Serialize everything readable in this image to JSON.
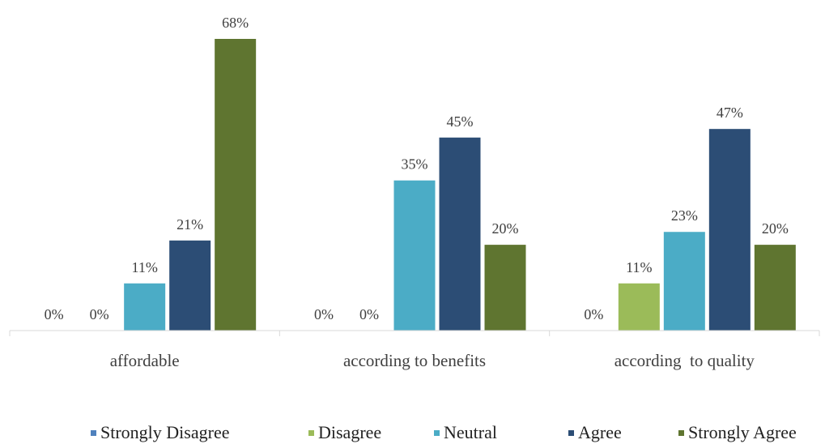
{
  "chart_data": {
    "type": "bar",
    "categories": [
      "affordable",
      "according to benefits",
      "according  to quality"
    ],
    "series": [
      {
        "name": "Strongly Disagree",
        "color": "#4f81bd",
        "values": [
          0,
          0,
          0
        ],
        "labels": [
          "0%",
          "0%",
          "0%"
        ]
      },
      {
        "name": "Disagree",
        "color": "#9bbb59",
        "values": [
          0,
          0,
          11
        ],
        "labels": [
          "0%",
          "0%",
          "11%"
        ]
      },
      {
        "name": "Neutral",
        "color": "#4bacc6",
        "values": [
          11,
          35,
          23
        ],
        "labels": [
          "11%",
          "35%",
          "23%"
        ]
      },
      {
        "name": "Agree",
        "color": "#2c4d75",
        "values": [
          21,
          45,
          47
        ],
        "labels": [
          "21%",
          "45%",
          "47%"
        ]
      },
      {
        "name": "Strongly Agree",
        "color": "#5f7530",
        "values": [
          68,
          20,
          20
        ],
        "labels": [
          "68%",
          "20%",
          "20%"
        ]
      }
    ],
    "ylim": [
      0,
      68
    ],
    "grid": false,
    "legend_position": "bottom"
  }
}
